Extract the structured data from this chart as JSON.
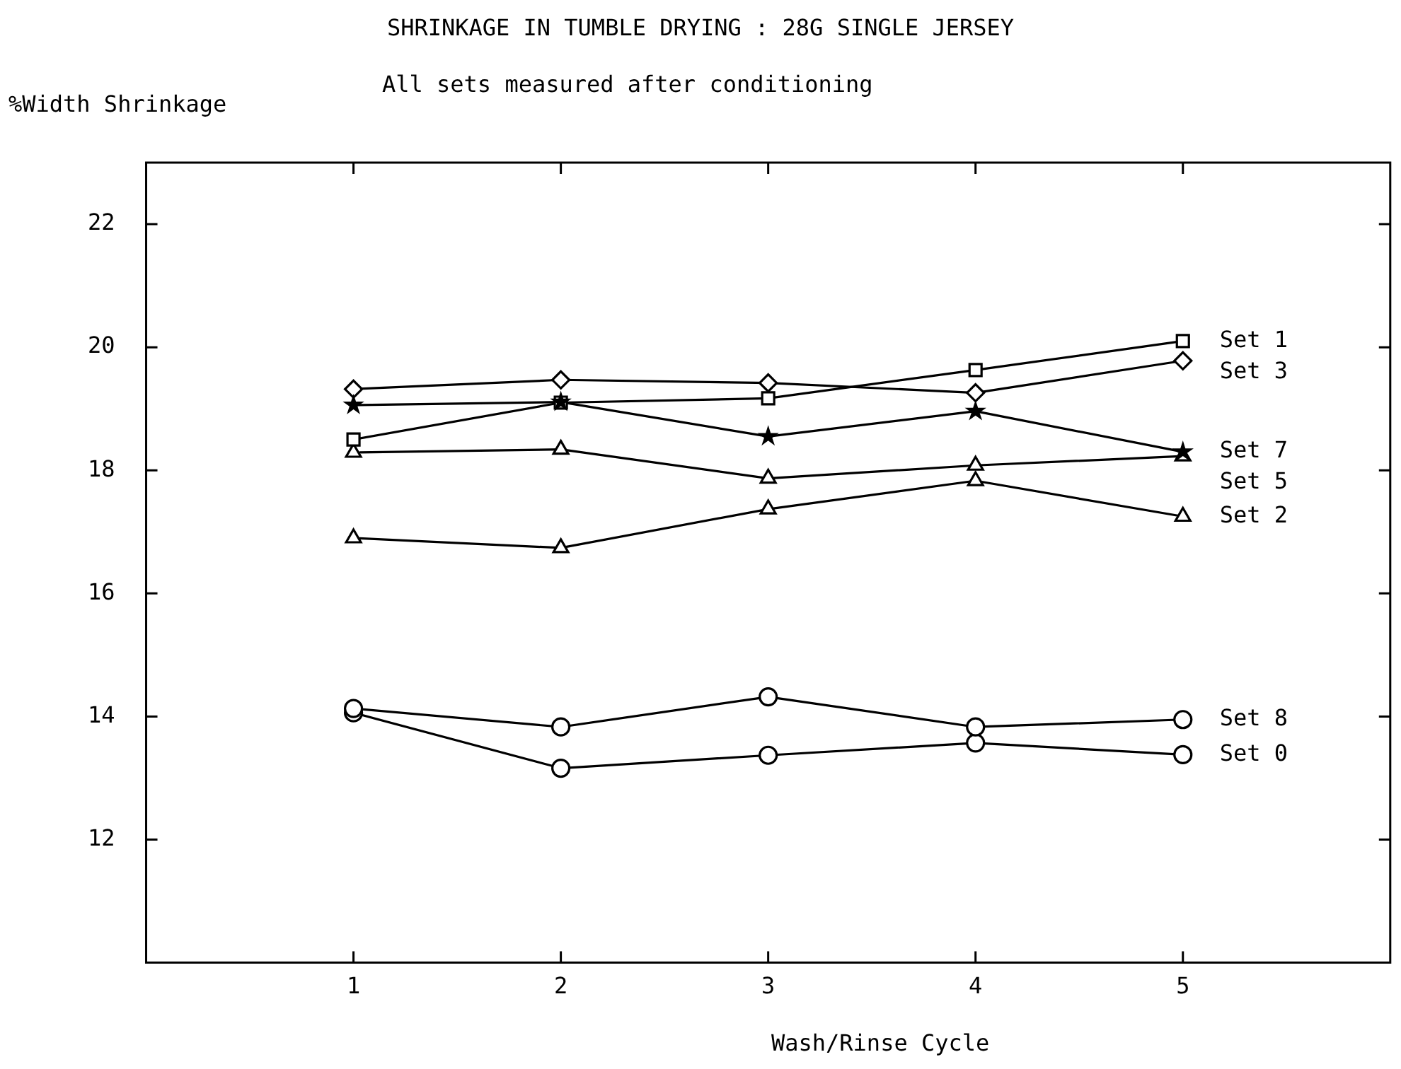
{
  "chart_data": {
    "type": "line",
    "title": "SHRINKAGE IN TUMBLE DRYING : 28G SINGLE JERSEY",
    "subtitle": "All sets measured after conditioning",
    "ylabel": "%Width Shrinkage",
    "xlabel": "Wash/Rinse Cycle",
    "x": [
      1,
      2,
      3,
      4,
      5
    ],
    "xlim": [
      0,
      6
    ],
    "xticks": [
      1,
      2,
      3,
      4,
      5
    ],
    "ylim": [
      10,
      23
    ],
    "yticks": [
      12,
      14,
      16,
      18,
      20,
      22
    ],
    "legend": false,
    "series": [
      {
        "name": "Set 1",
        "color": "#000000",
        "marker": "square",
        "values": [
          18.5,
          19.1,
          19.17,
          19.63,
          20.1
        ]
      },
      {
        "name": "Set 3",
        "color": "#000000",
        "marker": "diamond",
        "values": [
          19.32,
          19.47,
          19.42,
          19.26,
          19.78
        ]
      },
      {
        "name": "Set 7",
        "color": "#000000",
        "marker": "star",
        "values": [
          19.06,
          19.11,
          18.55,
          18.96,
          18.3
        ]
      },
      {
        "name": "Set 5",
        "color": "#000000",
        "marker": "triangle",
        "values": [
          18.29,
          18.34,
          17.87,
          18.08,
          18.23
        ]
      },
      {
        "name": "Set 2",
        "color": "#000000",
        "marker": "triangle",
        "values": [
          16.9,
          16.74,
          17.37,
          17.83,
          17.25
        ]
      },
      {
        "name": "Set 8",
        "color": "#000000",
        "marker": "circle",
        "values": [
          14.13,
          13.83,
          14.32,
          13.83,
          13.95
        ]
      },
      {
        "name": "Set 0",
        "color": "#000000",
        "marker": "circle",
        "values": [
          14.06,
          13.16,
          13.37,
          13.57,
          13.38
        ]
      }
    ]
  }
}
